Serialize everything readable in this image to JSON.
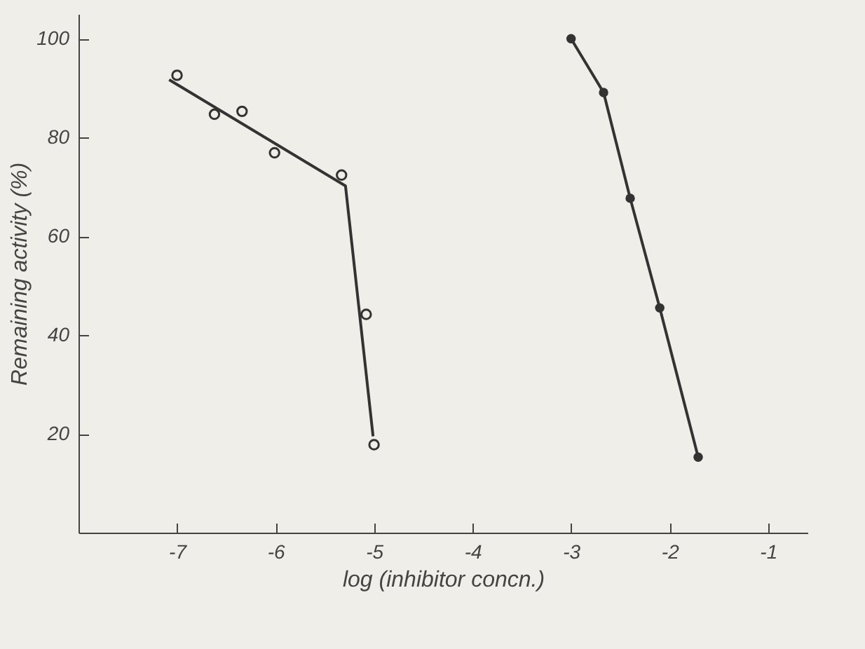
{
  "chart_data": {
    "type": "scatter",
    "xlabel": "log (inhibitor concn.)",
    "ylabel": "Remaining activity (%)",
    "xlim": [
      -8,
      -0.6
    ],
    "ylim": [
      0,
      105
    ],
    "xticks": [
      -7,
      -6,
      -5,
      -4,
      -3,
      -2,
      -1
    ],
    "yticks": [
      20,
      40,
      60,
      80,
      100
    ],
    "grid": false,
    "marker": "circle",
    "series": [
      {
        "color": "#333333",
        "x": [
          -7.0,
          -6.62,
          -6.34,
          -6.01,
          -5.33,
          -5.08,
          -5.0
        ],
        "values": [
          92.6,
          84.7,
          85.3,
          76.9,
          72.4,
          44.2,
          17.8
        ]
      },
      {
        "type": "line",
        "color": "#333333",
        "marker": "none",
        "x": [
          -7.08,
          -5.29,
          -5.01
        ],
        "values": [
          91.7,
          70.2,
          19.5
        ]
      },
      {
        "type": "line",
        "color": "#333333",
        "marker": "circle",
        "x": [
          -3.0,
          -2.67,
          -2.4,
          -2.1,
          -1.71
        ],
        "values": [
          100,
          89.1,
          67.7,
          45.5,
          15.3
        ]
      }
    ]
  }
}
